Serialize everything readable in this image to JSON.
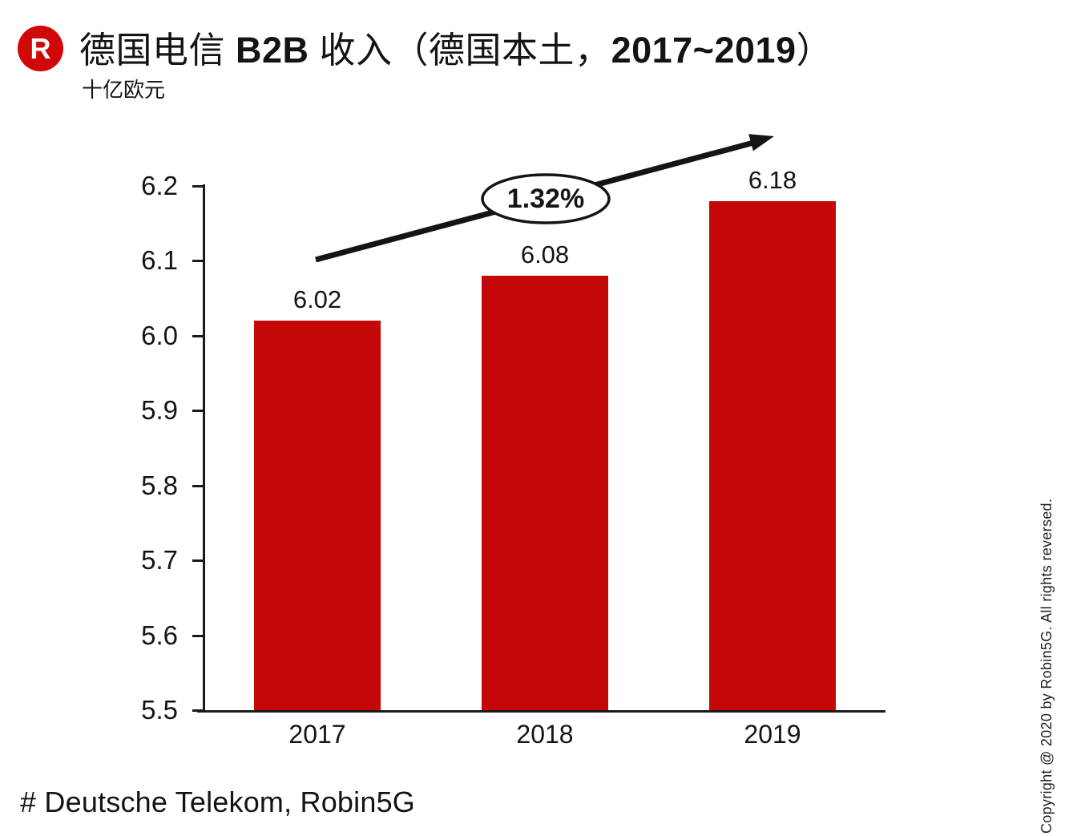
{
  "header": {
    "logo_letter": "R",
    "logo_color": "#d00808",
    "title": {
      "seg1": "德国电信 ",
      "seg2": "B2B",
      "seg3": " 收入（德国本土，",
      "seg4": "2017~2019",
      "seg5": "）"
    },
    "unit_label": "十亿欧元"
  },
  "chart_data": {
    "type": "bar",
    "title": "德国电信 B2B 收入（德国本土，2017~2019）",
    "ylabel": "十亿欧元",
    "xlabel": "",
    "categories": [
      "2017",
      "2018",
      "2019"
    ],
    "values": [
      6.02,
      6.08,
      6.18
    ],
    "bar_labels": [
      "6.02",
      "6.08",
      "6.18"
    ],
    "ylim": [
      5.5,
      6.2
    ],
    "ytick_step": 0.1,
    "ytick_labels": [
      "6.2",
      "6.1",
      "6.0",
      "5.9",
      "5.8",
      "5.7",
      "5.6",
      "5.5"
    ],
    "grid": false,
    "legend": false,
    "bar_color": "#c40808",
    "annotation": {
      "text": "1.32%"
    }
  },
  "footer": {
    "source": "# Deutsche Telekom, Robin5G",
    "copyright": "Copyright @ 2020 by Robin5G. All rights reversed."
  }
}
